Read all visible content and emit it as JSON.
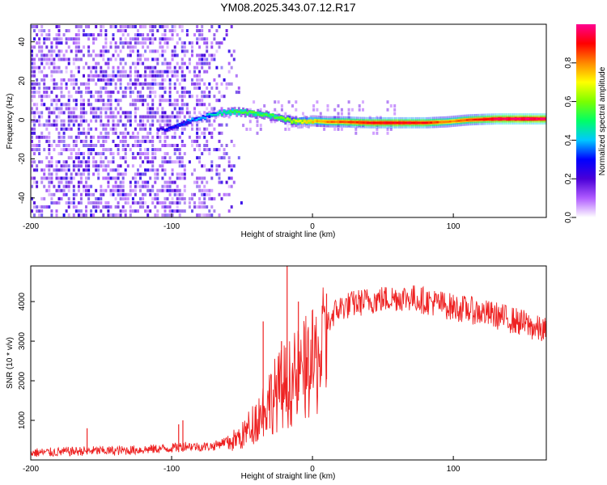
{
  "title": "YM08.2025.343.07.12.R17",
  "chart_data": [
    {
      "type": "heatmap",
      "xlabel": "Height of straight line (km)",
      "ylabel": "Frequency (Hz)",
      "xlim": [
        -200,
        166
      ],
      "ylim": [
        -50,
        49
      ],
      "xticks": [
        -200,
        -100,
        0,
        100
      ],
      "yticks": [
        -40,
        -20,
        0,
        20,
        40
      ],
      "description_of_signal": "Noise scattered over all frequencies from -200 to about -60 km; a narrow line converges near +4 Hz around -50 km and stays near -1 to 0 Hz from 0 km to the end.",
      "ridge": {
        "heights_km": [
          -110,
          -100,
          -90,
          -80,
          -70,
          -60,
          -50,
          -40,
          -30,
          -20,
          -10,
          0,
          10,
          20,
          40,
          60,
          80,
          95,
          110,
          130,
          150,
          166
        ],
        "frequency_hz": [
          -5,
          -4,
          -1,
          1,
          3,
          4,
          4,
          3,
          2,
          0,
          -1,
          -0.5,
          -1,
          -1,
          -1.5,
          -1.5,
          -1.5,
          -1,
          0,
          0.5,
          0.5,
          0.5
        ],
        "amplitude": [
          0.25,
          0.3,
          0.35,
          0.4,
          0.45,
          0.5,
          0.55,
          0.55,
          0.55,
          0.6,
          0.7,
          0.75,
          0.8,
          0.85,
          0.9,
          0.92,
          0.9,
          0.8,
          0.85,
          0.95,
          0.97,
          0.97
        ]
      },
      "colorbar": {
        "label": "Normalized spectral amplitude",
        "range": [
          0,
          1
        ],
        "ticks": [
          "0.0",
          "0.2",
          "0.4",
          "0.6",
          "0.8"
        ],
        "colors": [
          "#ffffff",
          "#b05cff",
          "#4a00d8",
          "#0000ff",
          "#00c8ff",
          "#00ff66",
          "#7cff00",
          "#ffff00",
          "#ff8800",
          "#ff0000",
          "#ff0090"
        ]
      }
    },
    {
      "type": "line",
      "xlabel": "Height of straight line (km)",
      "ylabel": "SNR (10 * v/v)",
      "xlim": [
        -200,
        166
      ],
      "ylim": [
        0,
        4900
      ],
      "xticks": [
        -200,
        -100,
        0,
        100
      ],
      "yticks": [
        1000,
        2000,
        3000,
        4000
      ],
      "series": [
        {
          "name": "SNR",
          "color": "#ee2222",
          "x": [
            -200,
            -180,
            -160,
            -140,
            -120,
            -100,
            -90,
            -80,
            -70,
            -60,
            -50,
            -45,
            -40,
            -35,
            -30,
            -25,
            -20,
            -15,
            -10,
            -5,
            0,
            5,
            10,
            15,
            20,
            30,
            40,
            50,
            60,
            70,
            80,
            90,
            100,
            110,
            120,
            130,
            140,
            150,
            160,
            166
          ],
          "y": [
            180,
            200,
            230,
            230,
            260,
            300,
            360,
            330,
            350,
            500,
            700,
            950,
            1200,
            1500,
            1800,
            2000,
            2200,
            2300,
            2500,
            2700,
            2800,
            3100,
            3400,
            3700,
            3850,
            3950,
            4020,
            4060,
            4100,
            4100,
            4020,
            3950,
            3850,
            3800,
            3720,
            3650,
            3550,
            3450,
            3300,
            3250
          ],
          "spikes": [
            {
              "x": -160,
              "y": 800
            },
            {
              "x": -95,
              "y": 900
            },
            {
              "x": -92,
              "y": 1000
            },
            {
              "x": -35,
              "y": 3500
            },
            {
              "x": -22,
              "y": 3000
            },
            {
              "x": -18,
              "y": 4900
            },
            {
              "x": -10,
              "y": 4000
            },
            {
              "x": 10,
              "y": 4200
            }
          ]
        }
      ]
    }
  ]
}
